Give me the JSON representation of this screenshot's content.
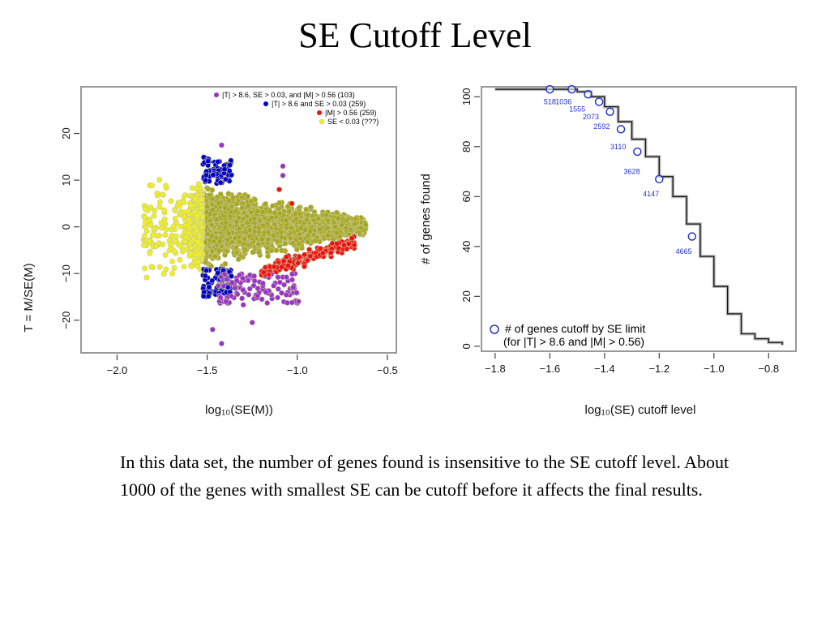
{
  "slide": {
    "title": "SE Cutoff Level",
    "caption": "In this data set, the number of genes found is insensitive to the SE cutoff level. About 1000 of the genes with smallest SE can be cutoff before it affects the final results."
  },
  "chart_data": [
    {
      "type": "scatter",
      "xlabel": "log₁₀(SE(M))",
      "ylabel": "T = M/SE(M)",
      "xlim": [
        -2.2,
        -0.45
      ],
      "ylim": [
        -27,
        30
      ],
      "xticks": [
        "−2.0",
        "−1.5",
        "−1.0",
        "−0.5"
      ],
      "xtick_values": [
        -2.0,
        -1.5,
        -1.0,
        -0.5
      ],
      "yticks": [
        "−20",
        "−10",
        "0",
        "10",
        "20"
      ],
      "ytick_values": [
        -20,
        -10,
        0,
        10,
        20
      ],
      "legend_position": "top-right",
      "se_cutoff_log10": -1.523,
      "series": [
        {
          "name": "|T| > 8.6, SE > 0.03, and |M| > 0.56 (103)",
          "color": "#9933cc"
        },
        {
          "name": "|T| > 8.6 and SE > 0.03 (259)",
          "color": "#0000cc"
        },
        {
          "name": "|M| > 0.56 (259)",
          "color": "#ee1111"
        },
        {
          "name": "SE < 0.03 (???)",
          "color": "#eeee22"
        }
      ],
      "other_points_color": "#a8a820"
    },
    {
      "type": "line",
      "xlabel": "log₁₀(SE) cutoff level",
      "ylabel": "# of genes found",
      "xlim": [
        -1.85,
        -0.7
      ],
      "ylim": [
        -2,
        104
      ],
      "xticks": [
        "−1.8",
        "−1.6",
        "−1.4",
        "−1.2",
        "−1.0",
        "−0.8"
      ],
      "xtick_values": [
        -1.8,
        -1.6,
        -1.4,
        -1.2,
        -1.0,
        -0.8
      ],
      "yticks": [
        "0",
        "20",
        "40",
        "60",
        "80",
        "100"
      ],
      "ytick_values": [
        0,
        20,
        40,
        60,
        80,
        100
      ],
      "curve": {
        "x": [
          -1.8,
          -1.75,
          -1.7,
          -1.65,
          -1.6,
          -1.55,
          -1.5,
          -1.45,
          -1.4,
          -1.35,
          -1.3,
          -1.25,
          -1.2,
          -1.15,
          -1.1,
          -1.05,
          -1.0,
          -0.95,
          -0.9,
          -0.85,
          -0.8,
          -0.75
        ],
        "y": [
          103,
          103,
          103,
          103,
          103,
          103,
          102,
          100,
          96,
          90,
          83,
          76,
          68,
          60,
          49,
          36,
          24,
          13,
          5,
          3,
          1.5,
          0.5
        ]
      },
      "markers": {
        "x": [
          -1.6,
          -1.52,
          -1.46,
          -1.42,
          -1.38,
          -1.34,
          -1.28,
          -1.2,
          -1.08
        ],
        "y": [
          103,
          103,
          101,
          98,
          94,
          87,
          78,
          67,
          44
        ]
      },
      "annotations": [
        {
          "x": -1.6,
          "y": 98,
          "text": "518"
        },
        {
          "x": -1.55,
          "y": 98,
          "text": "1036"
        },
        {
          "x": -1.5,
          "y": 95,
          "text": "1555"
        },
        {
          "x": -1.45,
          "y": 92,
          "text": "2073"
        },
        {
          "x": -1.41,
          "y": 88,
          "text": "2592"
        },
        {
          "x": -1.35,
          "y": 80,
          "text": "3110"
        },
        {
          "x": -1.3,
          "y": 70,
          "text": "3628"
        },
        {
          "x": -1.23,
          "y": 61,
          "text": "4147"
        },
        {
          "x": -1.11,
          "y": 38,
          "text": "4665"
        }
      ],
      "legend_position": "bottom-left",
      "legend": {
        "line1": "# of genes cutoff by SE limit",
        "line2": "(for |T| > 8.6 and |M| > 0.56)"
      }
    }
  ]
}
